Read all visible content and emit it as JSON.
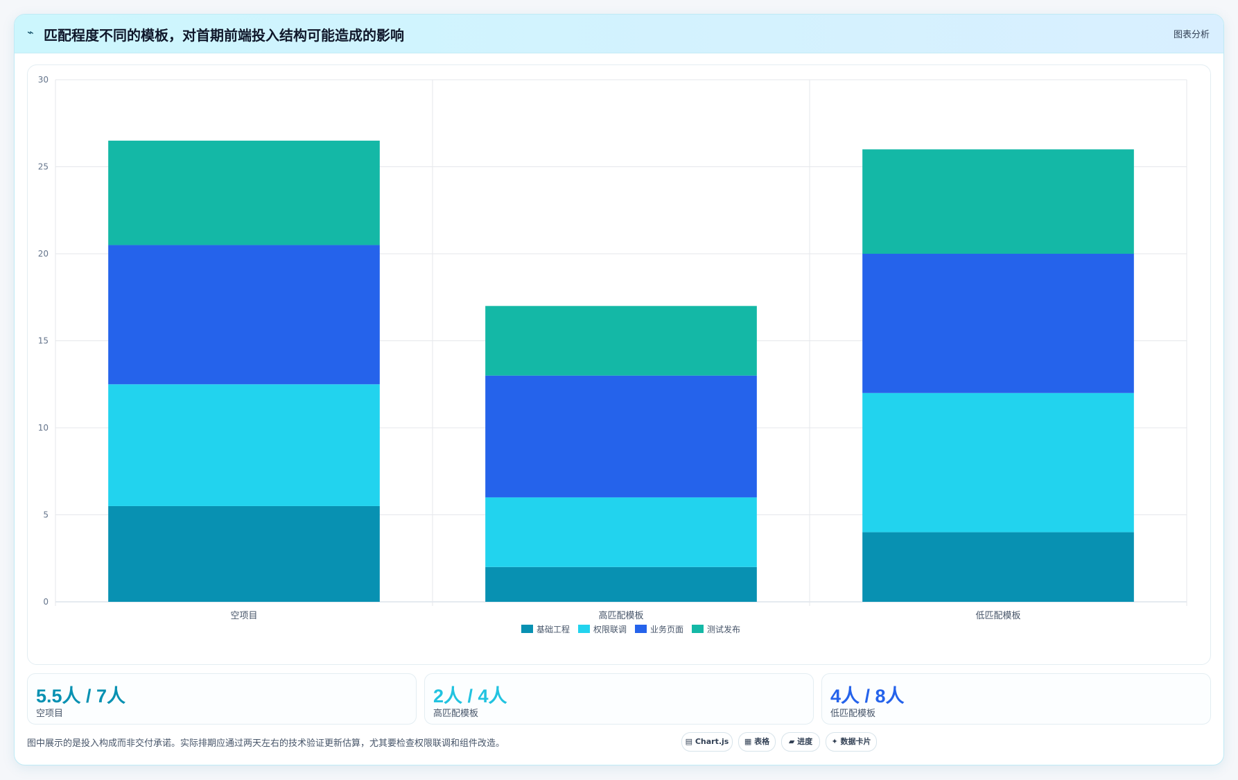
{
  "header": {
    "icon": "trend-icon",
    "title": "匹配程度不同的模板，对首期前端投入结构可能造成的影响",
    "tag": "图表分析"
  },
  "chart_data": {
    "type": "bar",
    "stacked": true,
    "categories": [
      "空项目",
      "高匹配模板",
      "低匹配模板"
    ],
    "series": [
      {
        "name": "基础工程",
        "color": "#0891b2",
        "values": [
          5.5,
          2,
          4
        ]
      },
      {
        "name": "权限联调",
        "color": "#22d3ee",
        "values": [
          7,
          4,
          8
        ]
      },
      {
        "name": "业务页面",
        "color": "#2563eb",
        "values": [
          8,
          7,
          8
        ]
      },
      {
        "name": "测试发布",
        "color": "#14b8a6",
        "values": [
          6,
          4,
          6
        ]
      }
    ],
    "ylim": [
      0,
      30
    ],
    "yticks": [
      "0",
      "5",
      "10",
      "15",
      "20",
      "25",
      "30"
    ],
    "grid": true,
    "legend": "bottom"
  },
  "stats": [
    {
      "value": "5.5人 / 7人",
      "label": "空项目",
      "color": "#0891b2"
    },
    {
      "value": "2人 / 4人",
      "label": "高匹配模板",
      "color": "#22c3e0"
    },
    {
      "value": "4人 / 8人",
      "label": "低匹配模板",
      "color": "#2563eb"
    }
  ],
  "footer": {
    "note": "图中展示的是投入构成而非交付承诺。实际排期应通过两天左右的技术验证更新估算，尤其要检查权限联调和组件改造。",
    "chips": [
      "▤ Chart.js",
      "▦ 表格",
      "▰ 进度",
      "✦ 数据卡片"
    ]
  }
}
